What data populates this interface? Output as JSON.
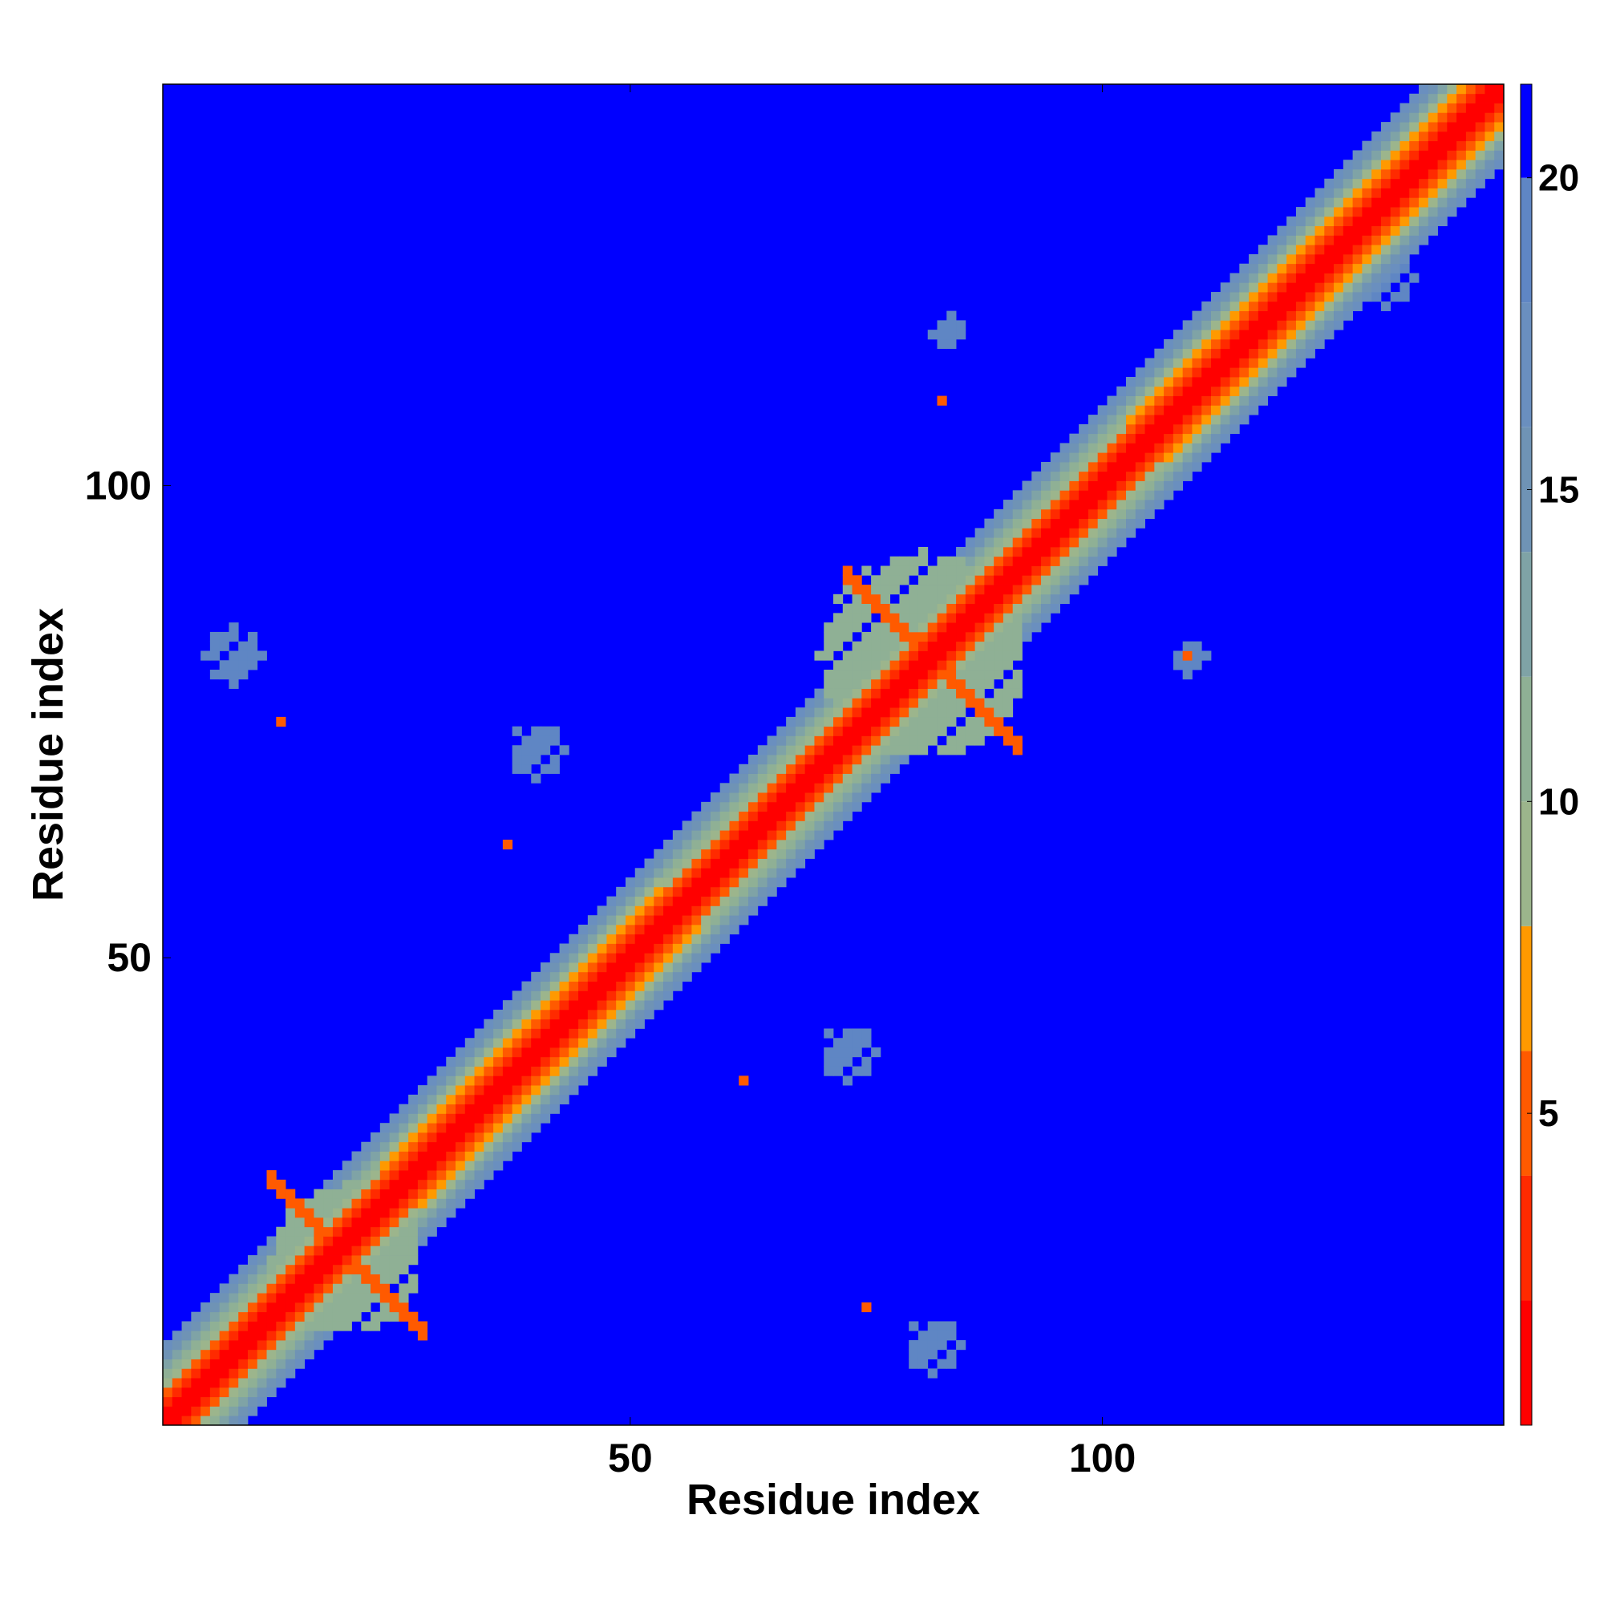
{
  "chart_data": {
    "type": "heatmap",
    "title": "",
    "xlabel": "Residue index",
    "ylabel": "Residue index",
    "n_residues": 142,
    "xlim": [
      1,
      142
    ],
    "ylim": [
      1,
      142
    ],
    "x_ticks": [
      50,
      100
    ],
    "y_ticks": [
      50,
      100
    ],
    "x_tick_labels": [
      "50",
      "100"
    ],
    "y_tick_labels": [
      "50",
      "100"
    ],
    "value_label": "",
    "colorbar": {
      "ticks": [
        5,
        10,
        15,
        20
      ],
      "tick_labels": [
        "5",
        "10",
        "15",
        "20"
      ],
      "range": [
        0,
        21.5
      ],
      "stops": [
        {
          "max": 2,
          "color": "#ff0000"
        },
        {
          "max": 4,
          "color": "#ff2a00"
        },
        {
          "max": 6,
          "color": "#ff5a00"
        },
        {
          "max": 8,
          "color": "#ff9900"
        },
        {
          "max": 10,
          "color": "#9cb58c"
        },
        {
          "max": 12,
          "color": "#8fb095"
        },
        {
          "max": 14,
          "color": "#7fa3a6"
        },
        {
          "max": 16,
          "color": "#6f93b5"
        },
        {
          "max": 18,
          "color": "#6a8fbf"
        },
        {
          "max": 20,
          "color": "#5f86c4"
        },
        {
          "max": 21.5,
          "color": "#0000ff"
        }
      ]
    },
    "background_value": 21,
    "diagonal_profile": [
      {
        "offset": 0,
        "value": 1
      },
      {
        "offset": 1,
        "value": 1.5
      },
      {
        "offset": 2,
        "value": 3
      },
      {
        "offset": 3,
        "value": 6
      },
      {
        "offset": 4,
        "value": 9
      },
      {
        "offset": 5,
        "value": 11
      },
      {
        "offset": 6,
        "value": 13.5
      },
      {
        "offset": 7,
        "value": 16
      },
      {
        "offset": 8,
        "value": 18
      },
      {
        "offset": 9,
        "value": 21
      }
    ],
    "features": [
      {
        "kind": "helix",
        "from": 36,
        "to": 53,
        "value": 7
      },
      {
        "kind": "helix",
        "from": 24,
        "to": 36,
        "value": 7
      },
      {
        "kind": "helix",
        "from": 103,
        "to": 141,
        "value": 7
      },
      {
        "kind": "cross",
        "center": [
          20,
          18
        ],
        "arm": 8,
        "value": 6
      },
      {
        "kind": "cross",
        "center": [
          82,
          81
        ],
        "arm": 9,
        "value": 6
      },
      {
        "kind": "blob",
        "center": [
          81,
          82
        ],
        "radius": 11,
        "value": 12
      },
      {
        "kind": "blob",
        "center": [
          20,
          18
        ],
        "radius": 8,
        "value": 12
      },
      {
        "kind": "blob",
        "center": [
          40,
          72
        ],
        "radius": 3,
        "value": 19
      },
      {
        "kind": "blob",
        "center": [
          8,
          82
        ],
        "radius": 3,
        "value": 19
      },
      {
        "kind": "blob",
        "center": [
          73,
          40
        ],
        "radius": 3,
        "value": 19
      },
      {
        "kind": "blob",
        "center": [
          82,
          9
        ],
        "radius": 3,
        "value": 19
      },
      {
        "kind": "blob",
        "center": [
          109,
          82
        ],
        "radius": 2,
        "value": 19
      },
      {
        "kind": "blob",
        "center": [
          84,
          116
        ],
        "radius": 2,
        "value": 19
      },
      {
        "kind": "blob",
        "center": [
          130,
          122
        ],
        "radius": 3,
        "value": 19
      },
      {
        "kind": "point",
        "at": [
          13,
          75
        ],
        "value": 6
      },
      {
        "kind": "point",
        "at": [
          37,
          62
        ],
        "value": 6
      },
      {
        "kind": "point",
        "at": [
          62,
          37
        ],
        "value": 6
      },
      {
        "kind": "point",
        "at": [
          75,
          13
        ],
        "value": 6
      },
      {
        "kind": "point",
        "at": [
          109,
          82
        ],
        "value": 6
      },
      {
        "kind": "point",
        "at": [
          83,
          109
        ],
        "value": 6
      }
    ]
  }
}
